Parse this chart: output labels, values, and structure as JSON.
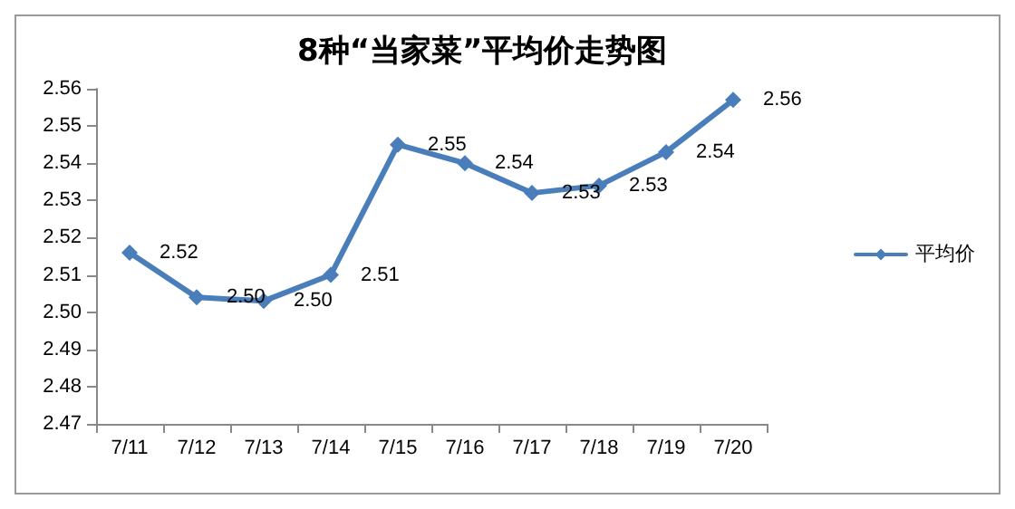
{
  "chart_data": {
    "type": "line",
    "title": "8种“当家菜”平均价走势图",
    "categories": [
      "7/11",
      "7/12",
      "7/13",
      "7/14",
      "7/15",
      "7/16",
      "7/17",
      "7/18",
      "7/19",
      "7/20"
    ],
    "series": [
      {
        "name": "平均价",
        "color": "#4a7ebb",
        "values": [
          2.516,
          2.504,
          2.503,
          2.51,
          2.545,
          2.54,
          2.532,
          2.534,
          2.543,
          2.557
        ],
        "value_labels": [
          "2.52",
          "2.50",
          "2.50",
          "2.51",
          "2.55",
          "2.54",
          "2.53",
          "2.53",
          "2.54",
          "2.56"
        ]
      }
    ],
    "ylim": [
      2.47,
      2.56
    ],
    "yticks": [
      2.47,
      2.48,
      2.49,
      {
        "value": 2.5,
        "label": "2.50"
      },
      2.51,
      2.52,
      2.53,
      2.54,
      2.55,
      2.56
    ],
    "grid": false,
    "legend": "right",
    "marker": "diamond",
    "line_style": "solid"
  }
}
